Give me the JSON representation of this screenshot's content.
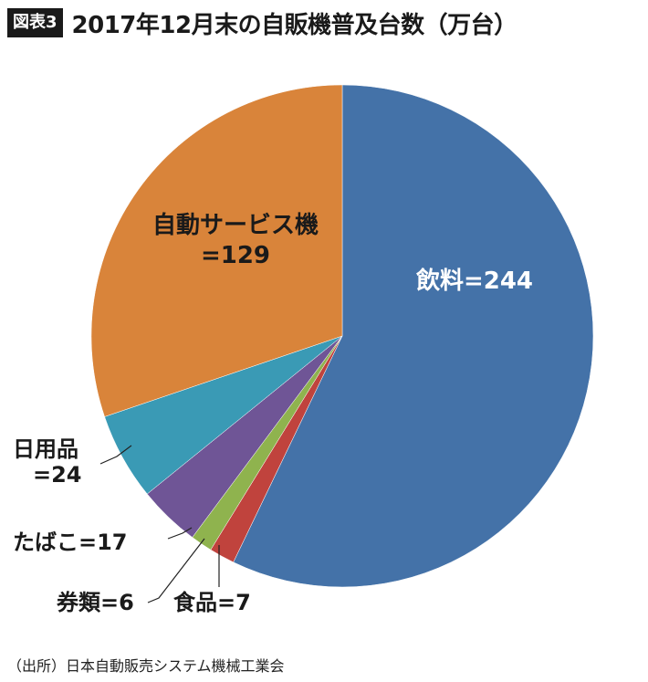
{
  "header": {
    "badge": "図表3",
    "title": "2017年12月末の自販機普及台数（万台）"
  },
  "chart_data": {
    "type": "pie",
    "title": "2017年12月末の自販機普及台数（万台）",
    "unit": "万台",
    "slices": [
      {
        "name": "飲料",
        "value": 244,
        "label": "飲料=244",
        "color": "#4472a8"
      },
      {
        "name": "食品",
        "value": 7,
        "label": "食品=7",
        "color": "#c0433d"
      },
      {
        "name": "券類",
        "value": 6,
        "label": "券類=6",
        "color": "#8fb34e"
      },
      {
        "name": "たばこ",
        "value": 17,
        "label": "たばこ=17",
        "color": "#6f5596"
      },
      {
        "name": "日用品",
        "value": 24,
        "label_line1": "日用品",
        "label_line2": "=24",
        "color": "#3a9ab5"
      },
      {
        "name": "自動サービス機",
        "value": 129,
        "label_line1": "自動サービス機",
        "label_line2": "=129",
        "color": "#d9843a"
      }
    ]
  },
  "footer": {
    "source": "（出所）日本自動販売システム機械工業会"
  }
}
